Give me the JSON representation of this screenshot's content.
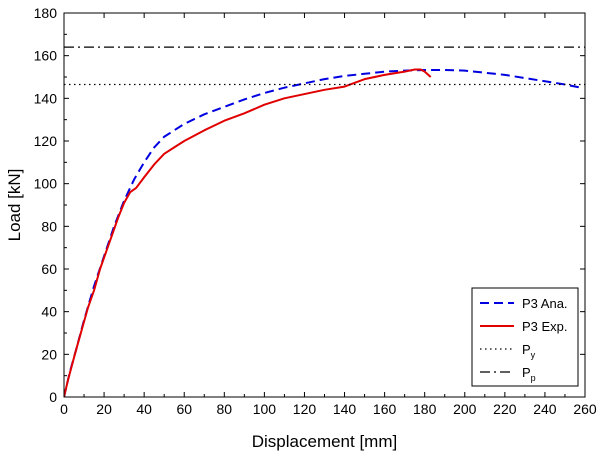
{
  "chart_data": {
    "type": "line",
    "xlabel": "Displacement [mm]",
    "ylabel": "Load [kN]",
    "xlim": [
      0,
      260
    ],
    "ylim": [
      0,
      180
    ],
    "xticks": [
      "0",
      "20",
      "40",
      "60",
      "80",
      "100",
      "120",
      "140",
      "160",
      "180",
      "200",
      "220",
      "240",
      "260"
    ],
    "yticks": [
      "0",
      "20",
      "40",
      "60",
      "80",
      "100",
      "120",
      "140",
      "160",
      "180"
    ],
    "grid": false,
    "legend_position": "bottom-right",
    "series": [
      {
        "name": "P3 Ana.",
        "style": "dashed",
        "color": "#0000e0",
        "x": [
          0,
          3,
          6,
          10,
          15,
          20,
          25,
          30,
          35,
          40,
          45,
          50,
          60,
          70,
          80,
          90,
          100,
          110,
          120,
          130,
          140,
          150,
          160,
          170,
          180,
          190,
          200,
          210,
          220,
          230,
          240,
          250,
          258
        ],
        "y": [
          0,
          12,
          22,
          36,
          52,
          66,
          80,
          92,
          102,
          110,
          117,
          122,
          128,
          132.5,
          136,
          139.5,
          142.5,
          145,
          147,
          149,
          150.5,
          151.5,
          152.5,
          153,
          153.3,
          153.3,
          153,
          152,
          151,
          149.5,
          148,
          146.5,
          145
        ]
      },
      {
        "name": "P3 Exp.",
        "style": "solid",
        "color": "#e00000",
        "x": [
          0,
          2,
          4,
          6,
          9,
          12,
          15,
          18,
          21,
          24,
          27,
          30,
          33,
          36,
          40,
          45,
          50,
          55,
          60,
          70,
          80,
          90,
          100,
          110,
          120,
          130,
          140,
          150,
          160,
          170,
          175,
          178,
          180,
          183
        ],
        "y": [
          0,
          8,
          15,
          22,
          32,
          42,
          50,
          60,
          68,
          76,
          84,
          91,
          96,
          98,
          103,
          109,
          114,
          117,
          120,
          125,
          129.5,
          133,
          137,
          140,
          142,
          144,
          145.5,
          149,
          151,
          152.5,
          153.5,
          153.5,
          152.5,
          150
        ]
      },
      {
        "name": "P",
        "name_subscript": "y",
        "style": "dotted",
        "color": "#000000",
        "x": [
          0,
          260
        ],
        "y": [
          146.5,
          146.5
        ]
      },
      {
        "name": "P",
        "name_subscript": "p",
        "style": "dashdot",
        "color": "#000000",
        "x": [
          0,
          260
        ],
        "y": [
          164,
          164
        ]
      }
    ]
  }
}
